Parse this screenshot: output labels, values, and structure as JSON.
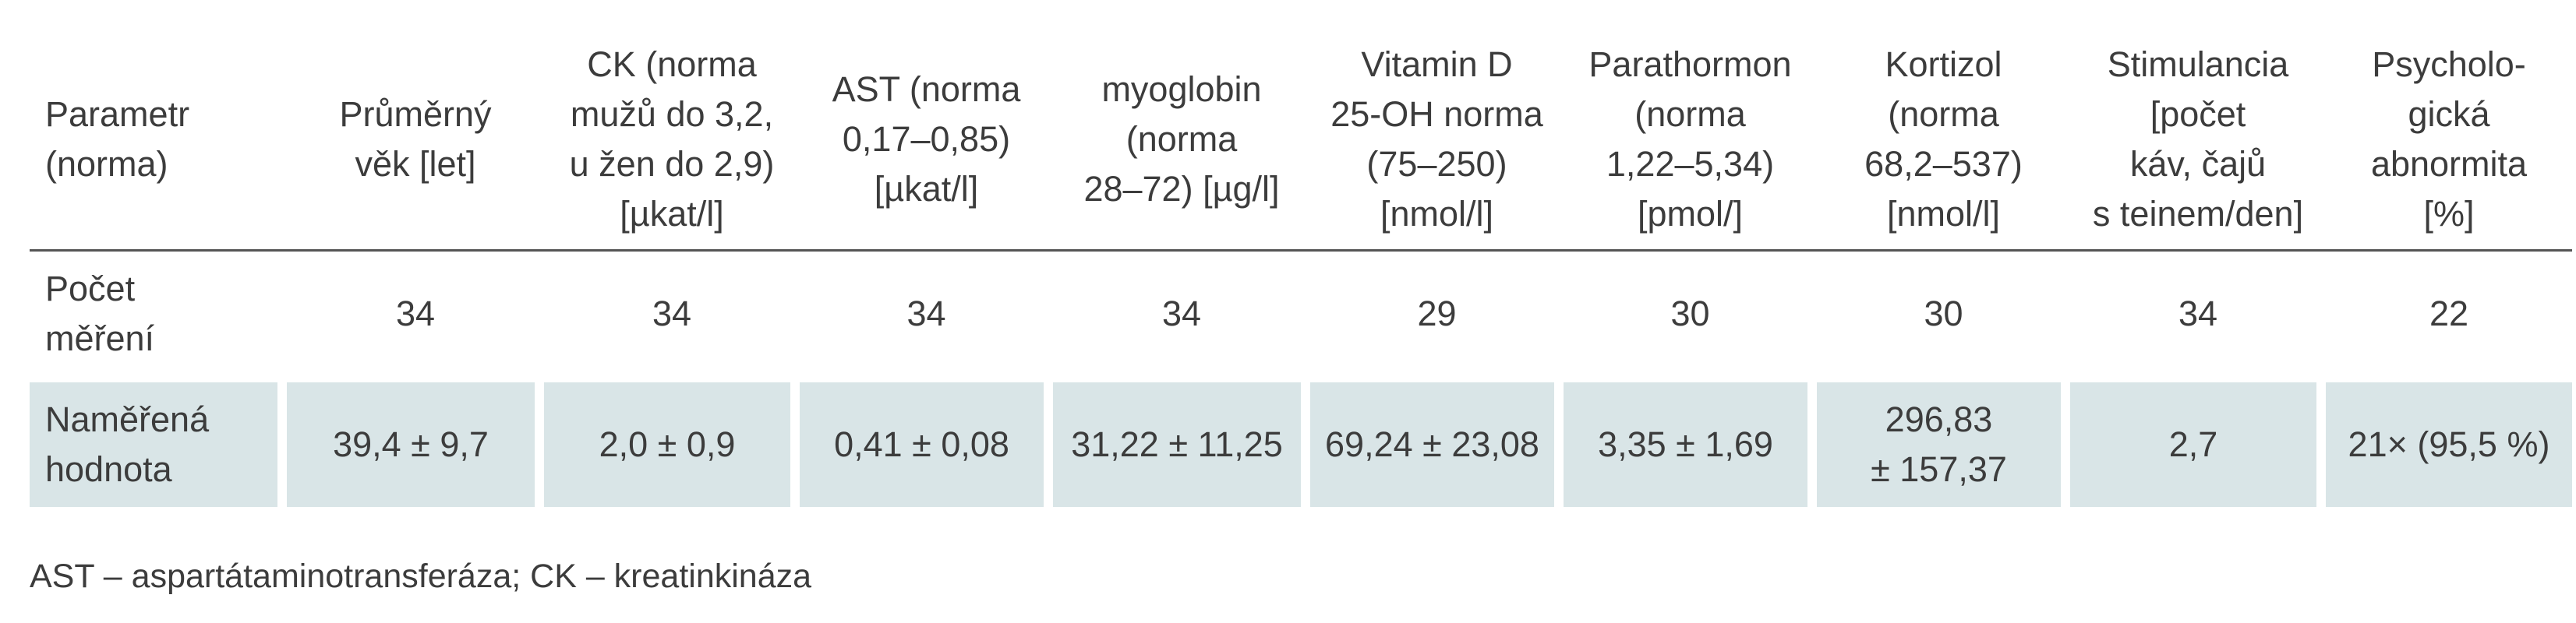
{
  "table": {
    "headers": [
      [
        "Parametr",
        "(norma)"
      ],
      [
        "Průměrný",
        "věk [let]"
      ],
      [
        "CK (norma",
        "mužů do 3,2,",
        "u žen do 2,9)",
        "[µkat/l]"
      ],
      [
        "AST (norma",
        "0,17–0,85)",
        "[µkat/l]"
      ],
      [
        "myoglobin",
        "(norma",
        "28–72) [µg/l]"
      ],
      [
        "Vitamin D",
        "25-OH norma",
        "(75–250)",
        "[nmol/l]"
      ],
      [
        "Parathormon",
        "(norma",
        "1,22–5,34)",
        "[pmol/]"
      ],
      [
        "Kortizol",
        "(norma",
        "68,2–537)",
        "[nmol/l]"
      ],
      [
        "Stimulancia",
        "[počet",
        "káv, čajů",
        "s teinem/den]"
      ],
      [
        "Psycholo-",
        "gická",
        "abnormita",
        "[%]"
      ]
    ],
    "rows": [
      {
        "label": [
          "Počet",
          "měření"
        ],
        "values": [
          "34",
          "34",
          "34",
          "34",
          "29",
          "30",
          "30",
          "34",
          "22"
        ]
      },
      {
        "label": [
          "Naměřená",
          "hodnota"
        ],
        "values": [
          "39,4 ± 9,7",
          "2,0 ± 0,9",
          "0,41 ± 0,08",
          "31,22 ± 11,25",
          "69,24 ± 23,08",
          "3,35 ± 1,69",
          [
            "296,83",
            "± 157,37"
          ],
          "2,7",
          "21× (95,5 %)"
        ]
      }
    ]
  },
  "footnote": "AST – aspartátaminotransferáza; CK – kreatinkináza",
  "colors": {
    "highlight_row": "#d9e5e7",
    "rule": "#555555",
    "text": "#3c3c3c"
  }
}
